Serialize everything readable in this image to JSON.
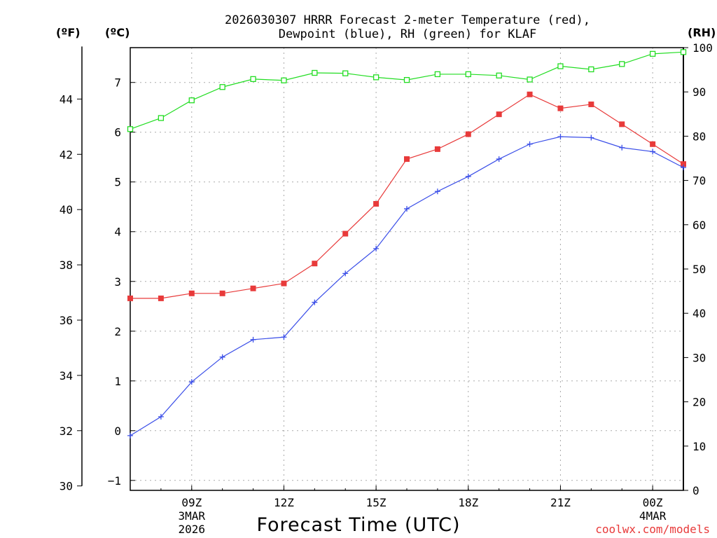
{
  "chart_data": {
    "type": "line",
    "title_line1": "2026030307 HRRR Forecast 2-meter Temperature (red),",
    "title_line2": "Dewpoint (blue), RH (green) for KLAF",
    "xlabel": "Forecast Time (UTC)",
    "unit_f": "(ºF)",
    "unit_c": "(ºC)",
    "unit_rh": "(RH)",
    "credit": "coolwx.com/models",
    "x_hours": [
      0,
      1,
      2,
      3,
      4,
      5,
      6,
      7,
      8,
      9,
      10,
      11,
      12,
      13,
      14,
      15,
      16,
      17,
      18
    ],
    "x_ticks": [
      {
        "h": 2,
        "label": "09Z",
        "sub1": "3MAR",
        "sub2": "2026"
      },
      {
        "h": 5,
        "label": "12Z",
        "sub1": "",
        "sub2": ""
      },
      {
        "h": 8,
        "label": "15Z",
        "sub1": "",
        "sub2": ""
      },
      {
        "h": 11,
        "label": "18Z",
        "sub1": "",
        "sub2": ""
      },
      {
        "h": 14,
        "label": "21Z",
        "sub1": "",
        "sub2": ""
      },
      {
        "h": 17,
        "label": "00Z",
        "sub1": "4MAR",
        "sub2": ""
      }
    ],
    "c_ticks": [
      "-1",
      "0",
      "1",
      "2",
      "3",
      "4",
      "5",
      "6",
      "7"
    ],
    "c_range": [
      -1.2,
      7.7
    ],
    "f_ticks": [
      "30",
      "32",
      "34",
      "36",
      "38",
      "40",
      "42",
      "44"
    ],
    "rh_ticks": [
      "0",
      "10",
      "20",
      "30",
      "40",
      "50",
      "60",
      "70",
      "80",
      "90",
      "100"
    ],
    "rh_range": [
      0,
      100
    ],
    "series": [
      {
        "name": "Temperature",
        "color": "#e83a3a",
        "marker": "filled-square",
        "values": [
          2.66,
          2.66,
          2.76,
          2.76,
          2.86,
          2.96,
          3.36,
          3.96,
          4.56,
          5.46,
          5.66,
          5.96,
          6.36,
          6.76,
          6.48,
          6.56,
          6.16,
          5.76,
          5.36
        ]
      },
      {
        "name": "Dewpoint",
        "color": "#3a4ee8",
        "marker": "plus",
        "values": [
          -0.1,
          0.28,
          0.98,
          1.48,
          1.83,
          1.88,
          2.58,
          3.16,
          3.66,
          4.46,
          4.81,
          5.11,
          5.46,
          5.76,
          5.91,
          5.89,
          5.69,
          5.61,
          5.29
        ]
      },
      {
        "name": "RH",
        "color": "#22dd22",
        "marker": "open-square",
        "axis": "rh",
        "values": [
          81.6,
          84.1,
          88.1,
          91.1,
          92.9,
          92.6,
          94.3,
          94.2,
          93.3,
          92.7,
          94.0,
          94.0,
          93.7,
          92.8,
          95.8,
          95.1,
          96.3,
          98.6,
          99.0
        ]
      }
    ]
  }
}
